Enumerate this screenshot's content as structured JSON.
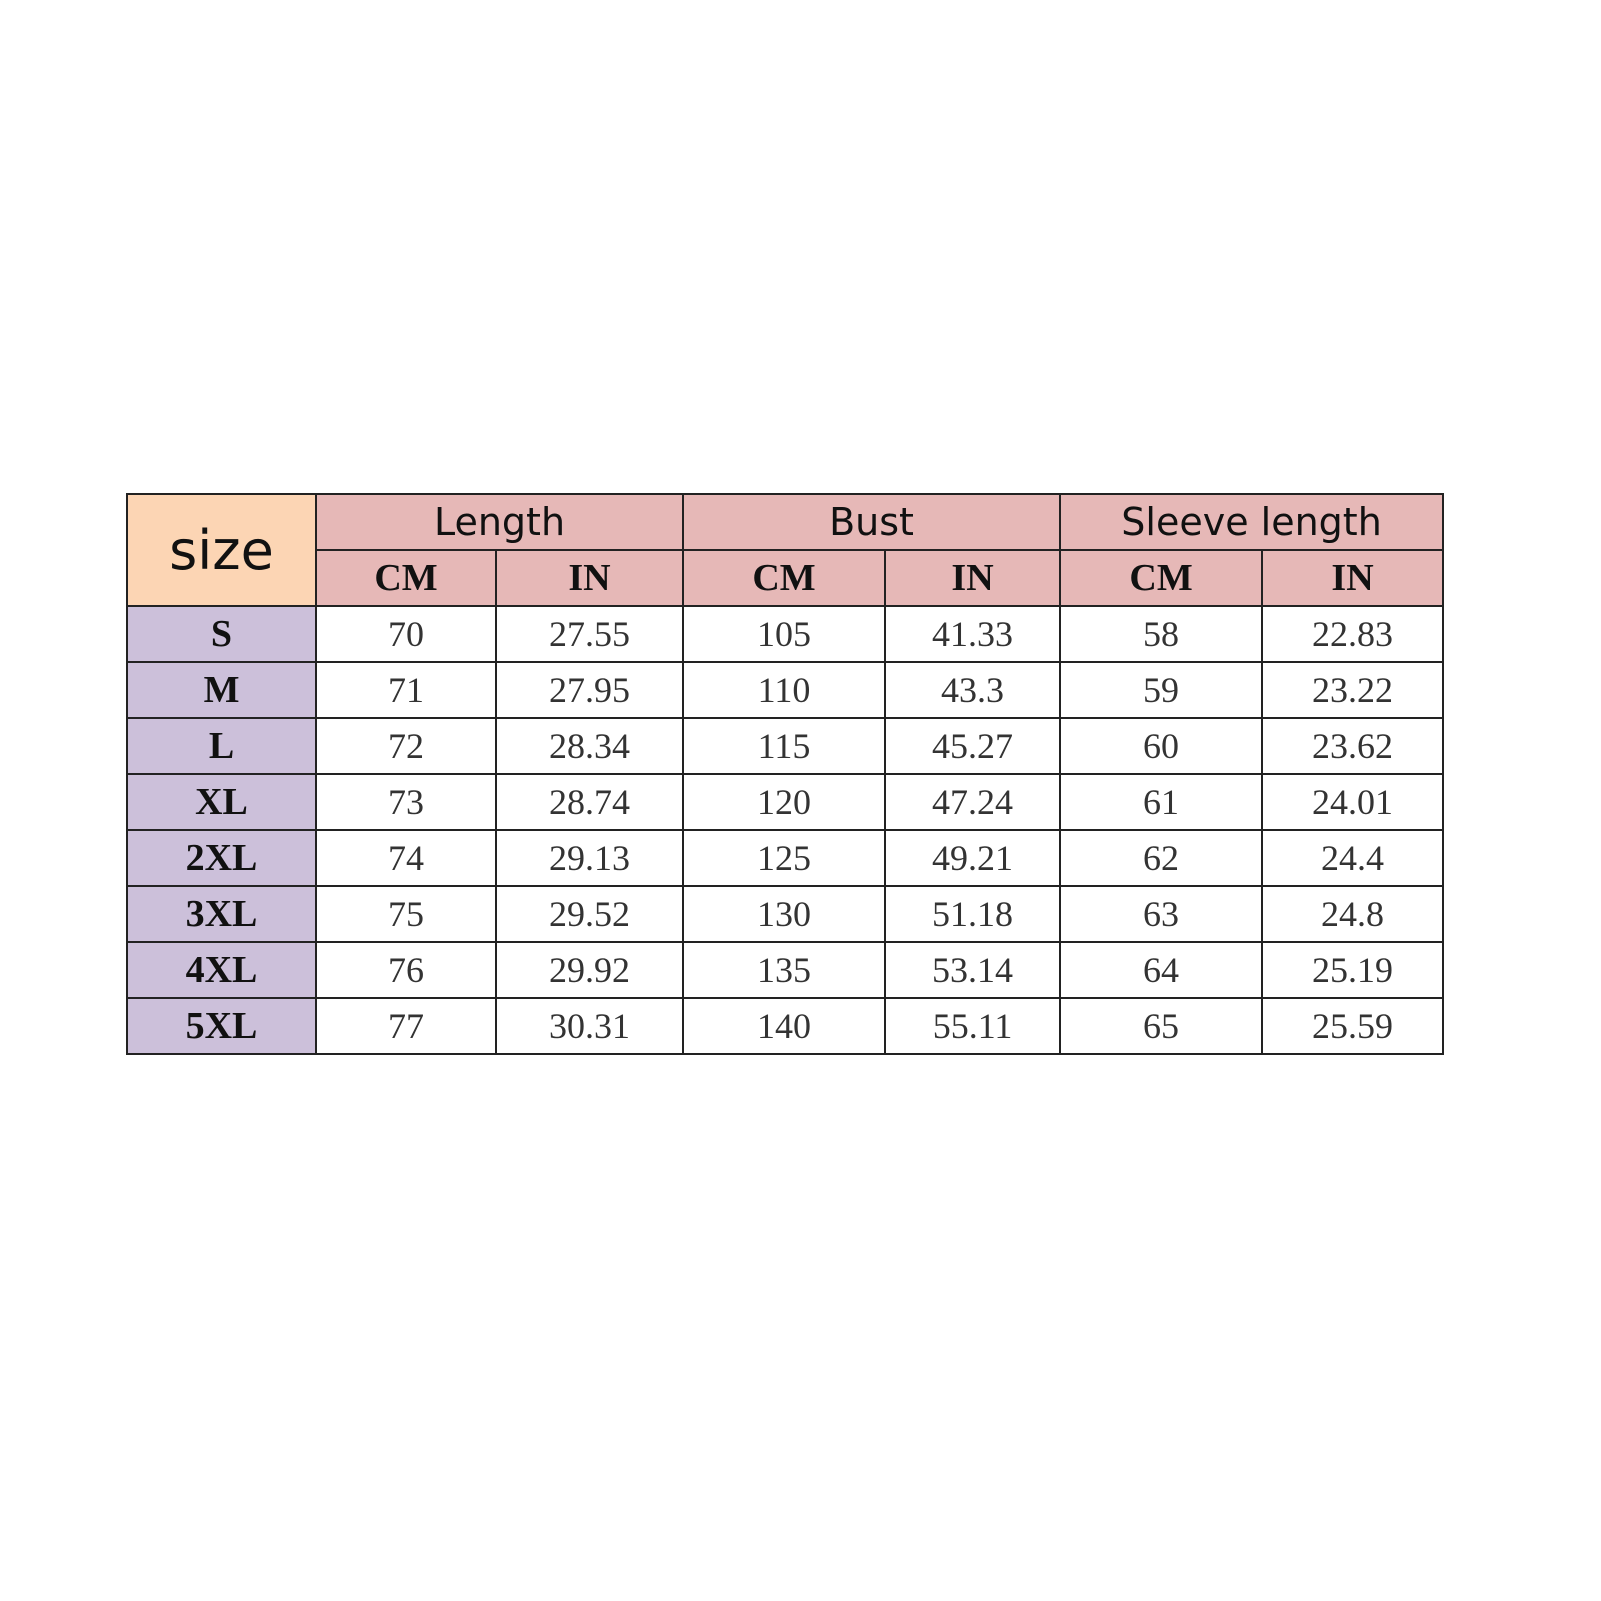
{
  "table": {
    "size_header": "size",
    "groups": [
      "Length",
      "Bust",
      "Sleeve length"
    ],
    "units": [
      "CM",
      "IN",
      "CM",
      "IN",
      "CM",
      "IN"
    ],
    "colors": {
      "size_header": "#fcd5b4",
      "group_header": "#e6b8b7",
      "size_column": "#ccc0da"
    },
    "rows": [
      {
        "size": "S",
        "values": [
          "70",
          "27.55",
          "105",
          "41.33",
          "58",
          "22.83"
        ]
      },
      {
        "size": "M",
        "values": [
          "71",
          "27.95",
          "110",
          "43.3",
          "59",
          "23.22"
        ]
      },
      {
        "size": "L",
        "values": [
          "72",
          "28.34",
          "115",
          "45.27",
          "60",
          "23.62"
        ]
      },
      {
        "size": "XL",
        "values": [
          "73",
          "28.74",
          "120",
          "47.24",
          "61",
          "24.01"
        ]
      },
      {
        "size": "2XL",
        "values": [
          "74",
          "29.13",
          "125",
          "49.21",
          "62",
          "24.4"
        ]
      },
      {
        "size": "3XL",
        "values": [
          "75",
          "29.52",
          "130",
          "51.18",
          "63",
          "24.8"
        ]
      },
      {
        "size": "4XL",
        "values": [
          "76",
          "29.92",
          "135",
          "53.14",
          "64",
          "25.19"
        ]
      },
      {
        "size": "5XL",
        "values": [
          "77",
          "30.31",
          "140",
          "55.11",
          "65",
          "25.59"
        ]
      }
    ]
  }
}
